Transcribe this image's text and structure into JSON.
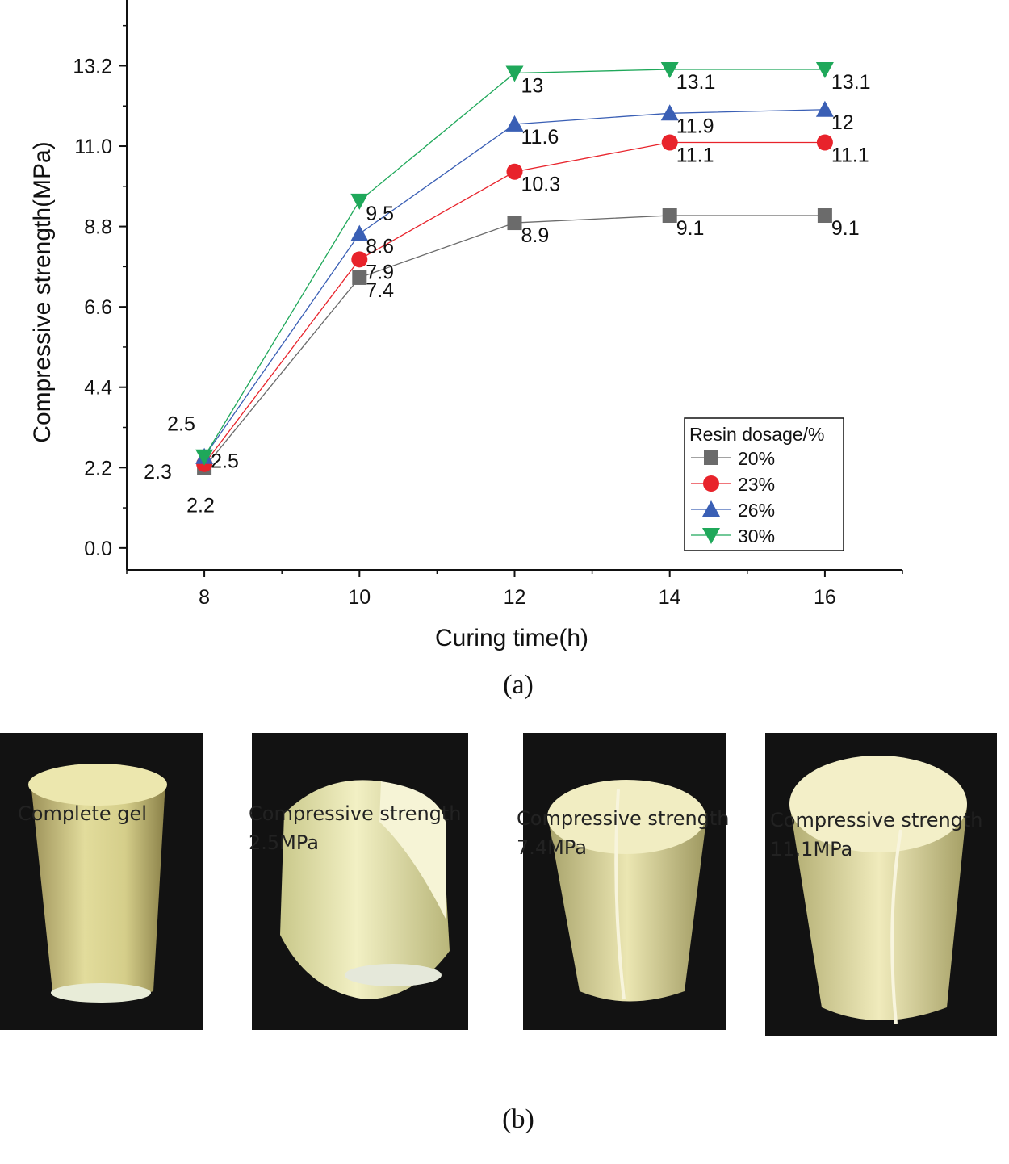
{
  "chart_data": {
    "type": "line",
    "xlabel": "Curing time(h)",
    "ylabel": "Compressive strength(MPa)",
    "x": [
      8,
      10,
      12,
      14,
      16
    ],
    "xlim": [
      7,
      17
    ],
    "ylim": [
      -0.6,
      15.0
    ],
    "x_ticks": [
      "8",
      "10",
      "12",
      "14",
      "16"
    ],
    "y_ticks": [
      "0.0",
      "2.2",
      "4.4",
      "6.6",
      "8.8",
      "11.0",
      "13.2"
    ],
    "legend_title": "Resin dosage/%",
    "legend_position": "bottom-right",
    "series": [
      {
        "name": "20%",
        "marker": "square",
        "color": "#6b6b6b",
        "values": [
          2.2,
          7.4,
          8.9,
          9.1,
          9.1
        ],
        "labels": [
          "2.2",
          "7.4",
          "8.9",
          "9.1",
          "9.1"
        ]
      },
      {
        "name": "23%",
        "marker": "circle",
        "color": "#e8232b",
        "values": [
          2.3,
          7.9,
          10.3,
          11.1,
          11.1
        ],
        "labels": [
          "2.3",
          "7.9",
          "10.3",
          "11.1",
          "11.1"
        ]
      },
      {
        "name": "26%",
        "marker": "triangle-up",
        "color": "#3a5fb5",
        "values": [
          2.5,
          8.6,
          11.6,
          11.9,
          12.0
        ],
        "labels": [
          "2.5",
          "8.6",
          "11.6",
          "11.9",
          "12"
        ]
      },
      {
        "name": "30%",
        "marker": "triangle-down",
        "color": "#1fa85a",
        "values": [
          2.5,
          9.5,
          13.0,
          13.1,
          13.1
        ],
        "labels": [
          "2.5",
          "9.5",
          "13",
          "13.1",
          "13.1"
        ]
      }
    ]
  },
  "captions": {
    "a": "(a)",
    "b": "(b)"
  },
  "photos": [
    {
      "label_line1": "Complete gel",
      "label_line2": ""
    },
    {
      "label_line1": "Compressive strength",
      "label_line2": "2.5MPa"
    },
    {
      "label_line1": "Compressive strength",
      "label_line2": "7.4MPa"
    },
    {
      "label_line1": "Compressive strength",
      "label_line2": "11.1MPa"
    }
  ]
}
